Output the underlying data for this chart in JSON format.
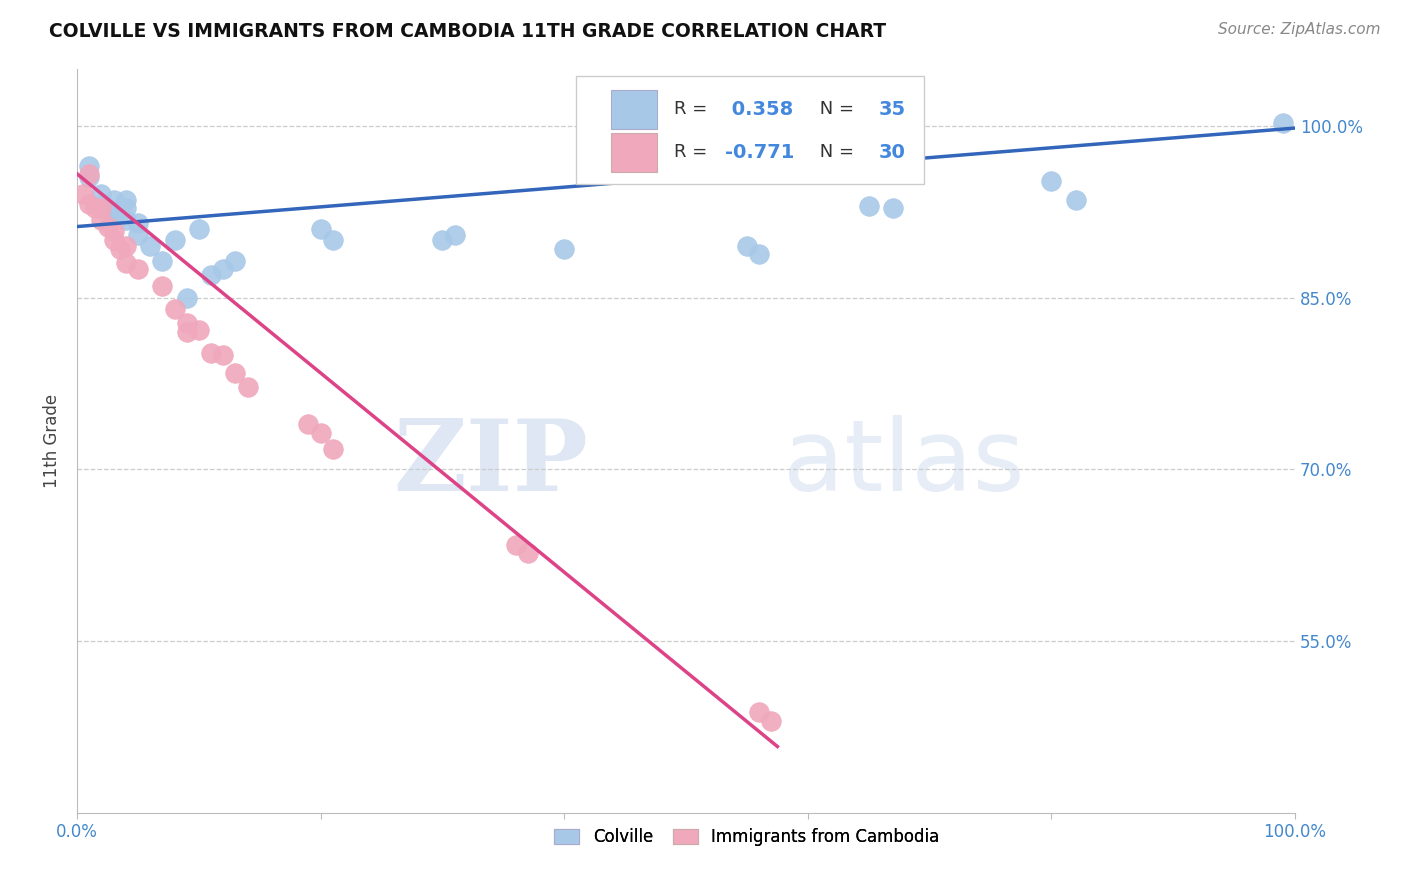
{
  "title": "COLVILLE VS IMMIGRANTS FROM CAMBODIA 11TH GRADE CORRELATION CHART",
  "source": "Source: ZipAtlas.com",
  "ylabel": "11th Grade",
  "xlim": [
    0.0,
    1.0
  ],
  "ylim": [
    0.4,
    1.05
  ],
  "right_yticks": [
    1.0,
    0.85,
    0.7,
    0.55
  ],
  "right_yticklabels": [
    "100.0%",
    "85.0%",
    "70.0%",
    "55.0%"
  ],
  "xticks": [
    0.0,
    0.2,
    0.4,
    0.6,
    0.8,
    1.0
  ],
  "xticklabels": [
    "0.0%",
    "",
    "",
    "",
    "",
    "100.0%"
  ],
  "blue_r": 0.358,
  "blue_n": 35,
  "pink_r": -0.771,
  "pink_n": 30,
  "blue_color": "#a8c8e8",
  "pink_color": "#f0a8bc",
  "blue_line_color": "#3366bb",
  "pink_line_color": "#dd4488",
  "legend_label_blue": "Colville",
  "legend_label_pink": "Immigrants from Cambodia",
  "watermark_zip": "ZIP",
  "watermark_atlas": "atlas",
  "blue_x": [
    0.01,
    0.01,
    0.02,
    0.02,
    0.03,
    0.03,
    0.03,
    0.04,
    0.04,
    0.04,
    0.05,
    0.05,
    0.06,
    0.07,
    0.08,
    0.09,
    0.1,
    0.11,
    0.12,
    0.13,
    0.2,
    0.21,
    0.3,
    0.31,
    0.4,
    0.55,
    0.56,
    0.65,
    0.67,
    0.8,
    0.82,
    0.99
  ],
  "blue_y": [
    0.955,
    0.965,
    0.94,
    0.93,
    0.935,
    0.925,
    0.92,
    0.935,
    0.928,
    0.918,
    0.915,
    0.905,
    0.895,
    0.882,
    0.9,
    0.85,
    0.91,
    0.87,
    0.875,
    0.882,
    0.91,
    0.9,
    0.9,
    0.905,
    0.892,
    0.895,
    0.888,
    0.93,
    0.928,
    0.952,
    0.935,
    1.002
  ],
  "pink_x": [
    0.005,
    0.01,
    0.01,
    0.015,
    0.02,
    0.02,
    0.025,
    0.03,
    0.03,
    0.035,
    0.04,
    0.04,
    0.05,
    0.07,
    0.08,
    0.09,
    0.09,
    0.1,
    0.11,
    0.12,
    0.13,
    0.14,
    0.19,
    0.2,
    0.21,
    0.36,
    0.37,
    0.56,
    0.57
  ],
  "pink_y": [
    0.94,
    0.958,
    0.932,
    0.928,
    0.928,
    0.918,
    0.912,
    0.908,
    0.9,
    0.892,
    0.895,
    0.88,
    0.875,
    0.86,
    0.84,
    0.828,
    0.82,
    0.822,
    0.802,
    0.8,
    0.784,
    0.772,
    0.74,
    0.732,
    0.718,
    0.634,
    0.627,
    0.488,
    0.48
  ],
  "blue_trend_x": [
    0.0,
    1.0
  ],
  "blue_trend_y": [
    0.912,
    0.998
  ],
  "pink_trend_x": [
    0.0,
    0.575
  ],
  "pink_trend_y": [
    0.958,
    0.458
  ]
}
